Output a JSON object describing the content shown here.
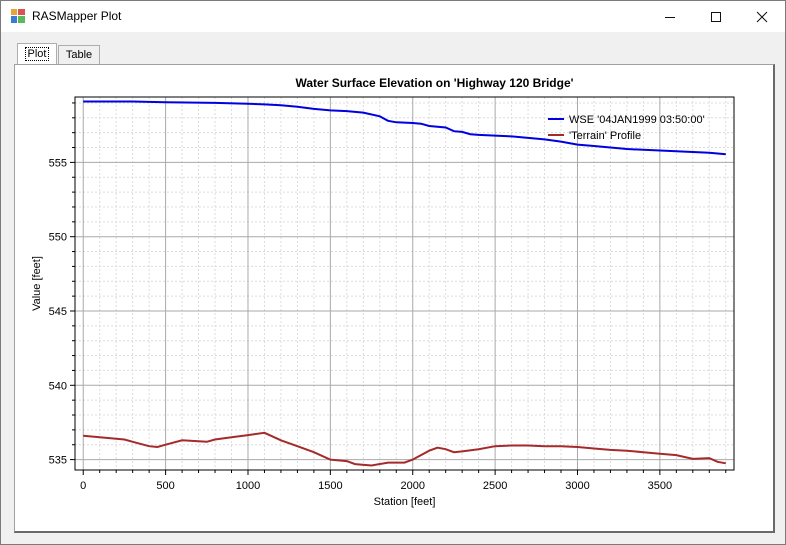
{
  "window": {
    "title": "RASMapper Plot",
    "icons": {
      "app": "rasmapper-app-icon",
      "minimize": "minimize-icon",
      "maximize": "maximize-icon",
      "close": "close-icon"
    }
  },
  "tabs": [
    {
      "label": "Plot",
      "selected": true
    },
    {
      "label": "Table",
      "selected": false
    }
  ],
  "chart_data": {
    "type": "line",
    "title": "Water Surface Elevation on 'Highway 120 Bridge'",
    "xlabel": "Station [feet]",
    "ylabel": "Value [feet]",
    "xlim": [
      -50,
      3950
    ],
    "ylim": [
      534.3,
      559.4
    ],
    "xticks": [
      0,
      500,
      1000,
      1500,
      2000,
      2500,
      3000,
      3500
    ],
    "yticks": [
      535,
      540,
      545,
      550,
      555
    ],
    "grid": true,
    "legend_position": "top-right",
    "series": [
      {
        "name": "WSE '04JAN1999 03:50:00'",
        "color": "#0000e0",
        "points": [
          [
            0,
            559.1
          ],
          [
            300,
            559.1
          ],
          [
            500,
            559.05
          ],
          [
            800,
            559.0
          ],
          [
            1000,
            558.95
          ],
          [
            1100,
            558.9
          ],
          [
            1200,
            558.85
          ],
          [
            1300,
            558.75
          ],
          [
            1400,
            558.6
          ],
          [
            1500,
            558.5
          ],
          [
            1600,
            558.45
          ],
          [
            1700,
            558.35
          ],
          [
            1800,
            558.1
          ],
          [
            1850,
            557.8
          ],
          [
            1900,
            557.7
          ],
          [
            2000,
            557.65
          ],
          [
            2050,
            557.6
          ],
          [
            2100,
            557.45
          ],
          [
            2200,
            557.35
          ],
          [
            2250,
            557.1
          ],
          [
            2300,
            557.05
          ],
          [
            2350,
            556.9
          ],
          [
            2400,
            556.85
          ],
          [
            2500,
            556.8
          ],
          [
            2600,
            556.75
          ],
          [
            2700,
            556.65
          ],
          [
            2800,
            556.55
          ],
          [
            2900,
            556.4
          ],
          [
            3000,
            556.2
          ],
          [
            3100,
            556.1
          ],
          [
            3200,
            556.0
          ],
          [
            3300,
            555.9
          ],
          [
            3400,
            555.85
          ],
          [
            3500,
            555.8
          ],
          [
            3600,
            555.75
          ],
          [
            3700,
            555.7
          ],
          [
            3800,
            555.65
          ],
          [
            3900,
            555.55
          ]
        ]
      },
      {
        "name": "'Terrain' Profile",
        "color": "#a52a2a",
        "points": [
          [
            0,
            536.6
          ],
          [
            100,
            536.5
          ],
          [
            250,
            536.35
          ],
          [
            300,
            536.2
          ],
          [
            400,
            535.9
          ],
          [
            450,
            535.85
          ],
          [
            500,
            536.0
          ],
          [
            600,
            536.3
          ],
          [
            750,
            536.2
          ],
          [
            800,
            536.35
          ],
          [
            900,
            536.5
          ],
          [
            1000,
            536.65
          ],
          [
            1100,
            536.8
          ],
          [
            1200,
            536.3
          ],
          [
            1300,
            535.9
          ],
          [
            1400,
            535.5
          ],
          [
            1500,
            535.0
          ],
          [
            1600,
            534.9
          ],
          [
            1650,
            534.7
          ],
          [
            1750,
            534.6
          ],
          [
            1850,
            534.8
          ],
          [
            1950,
            534.8
          ],
          [
            2000,
            535.0
          ],
          [
            2100,
            535.6
          ],
          [
            2150,
            535.8
          ],
          [
            2200,
            535.7
          ],
          [
            2250,
            535.5
          ],
          [
            2300,
            535.55
          ],
          [
            2400,
            535.7
          ],
          [
            2500,
            535.9
          ],
          [
            2600,
            535.95
          ],
          [
            2700,
            535.95
          ],
          [
            2800,
            535.9
          ],
          [
            2900,
            535.9
          ],
          [
            3000,
            535.85
          ],
          [
            3100,
            535.75
          ],
          [
            3200,
            535.65
          ],
          [
            3300,
            535.6
          ],
          [
            3400,
            535.5
          ],
          [
            3500,
            535.4
          ],
          [
            3600,
            535.3
          ],
          [
            3700,
            535.05
          ],
          [
            3800,
            535.1
          ],
          [
            3850,
            534.85
          ],
          [
            3900,
            534.75
          ]
        ]
      }
    ]
  }
}
